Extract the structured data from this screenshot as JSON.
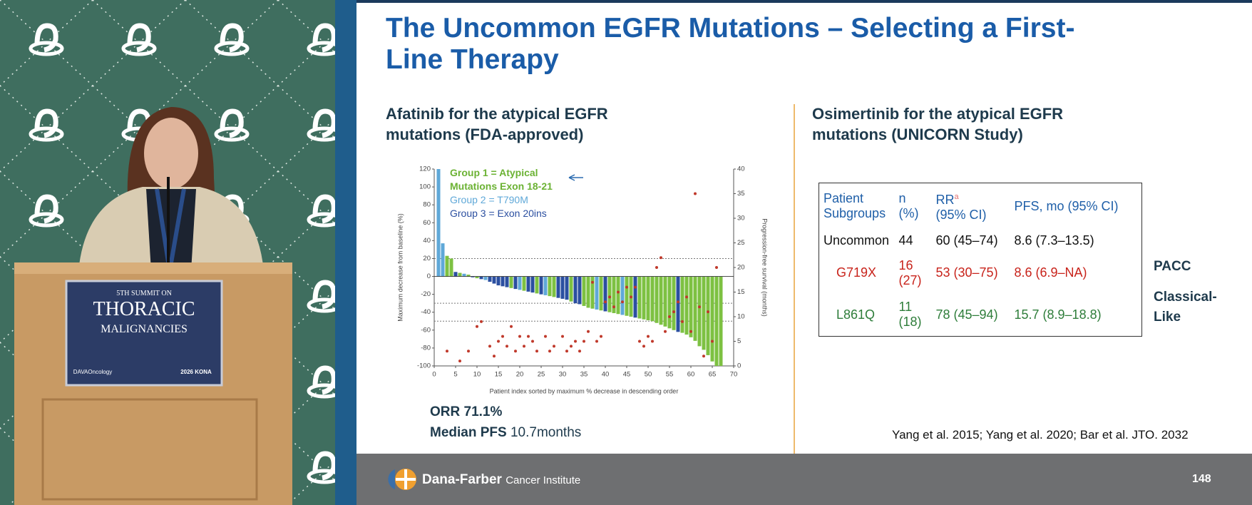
{
  "video": {
    "sign_lines": [
      "5TH SUMMIT ON",
      "THORACIC",
      "MALIGNANCIES"
    ],
    "sign_logo": "DAVAOncology",
    "sign_event": "2026 KONA"
  },
  "slide": {
    "title": "The Uncommon EGFR Mutations – Selecting a First-Line Therapy",
    "left_heading": "Afatinib for the atypical EGFR mutations (FDA-approved)",
    "right_heading": "Osimertinib for the atypical EGFR mutations (UNICORN Study)",
    "orr": "ORR 71.1%",
    "pfs_label": "Median PFS",
    "pfs_value": "10.7months",
    "table": {
      "header": [
        "Patient Subgroups",
        "n (%)",
        [
          "RR",
          "a",
          "(95% CI)"
        ],
        "PFS, mo (95% CI)"
      ],
      "rows": [
        [
          "Uncommon",
          "44",
          "60 (45–74)",
          "8.6 (7.3–13.5)"
        ],
        [
          "G719X",
          "16 (27)",
          "53 (30–75)",
          "8.6 (6.9–NA)"
        ],
        [
          "L861Q",
          "11 (18)",
          "78 (45–94)",
          "15.7 (8.9–18.8)"
        ]
      ]
    },
    "side_labels": [
      "PACC",
      "Classical-Like"
    ],
    "citation": "Yang et al. 2015; Yang et al. 2020; Bar et al. JTO. 2032",
    "footer": {
      "institution": "Dana-Farber",
      "subtitle": "Cancer Institute",
      "page": "148"
    }
  },
  "chart_data": {
    "type": "bar",
    "xlabel": "Patient index sorted by maximum % decrease in descending order",
    "ylabel": "Maximum decrease from baseline (%)",
    "y2label": "Progression-free survival (months)",
    "xlim": [
      0,
      70
    ],
    "xticks": [
      0,
      5,
      10,
      15,
      20,
      25,
      30,
      35,
      40,
      45,
      50,
      55,
      60,
      65,
      70
    ],
    "ylim": [
      -100,
      120
    ],
    "yticks": [
      -100,
      -80,
      -60,
      -40,
      -20,
      0,
      20,
      40,
      60,
      80,
      100,
      120
    ],
    "y2lim": [
      0,
      40
    ],
    "y2ticks": [
      0,
      5,
      10,
      15,
      20,
      25,
      30,
      35,
      40
    ],
    "reference_lines": [
      20,
      -30,
      -50
    ],
    "series": [
      {
        "name": "Group 1 = Atypical Mutations Exon 18-21",
        "color": "#7dc142",
        "x": [
          3,
          4,
          6,
          8,
          10,
          18,
          21,
          24,
          27,
          28,
          32,
          35,
          36,
          37,
          39,
          41,
          42,
          43,
          45,
          46,
          48,
          49,
          50,
          51,
          52,
          53,
          54,
          55,
          56,
          58,
          59,
          60,
          61,
          62,
          63,
          64,
          65,
          66,
          67
        ],
        "values": [
          23,
          20,
          4,
          2,
          -2,
          -13,
          -16,
          -19,
          -22,
          -23,
          -28,
          -33,
          -35,
          -36,
          -38,
          -40,
          -41,
          -42,
          -44,
          -45,
          -47,
          -48,
          -49,
          -50,
          -52,
          -54,
          -56,
          -58,
          -60,
          -63,
          -65,
          -68,
          -72,
          -78,
          -82,
          -88,
          -95,
          -100,
          -100
        ]
      },
      {
        "name": "Group 2 = T790M",
        "color": "#5fa8d8",
        "x": [
          1,
          2,
          7,
          12,
          20,
          26,
          38,
          44
        ],
        "values": [
          120,
          37,
          3,
          -4,
          -15,
          -21,
          -37,
          -43
        ]
      },
      {
        "name": "Group 3 = Exon 20ins",
        "color": "#2b4fa0",
        "x": [
          5,
          9,
          11,
          13,
          14,
          15,
          16,
          17,
          19,
          22,
          23,
          25,
          29,
          30,
          31,
          33,
          34,
          40,
          47,
          57
        ],
        "values": [
          5,
          -1,
          -3,
          -6,
          -8,
          -10,
          -11,
          -12,
          -14,
          -17,
          -18,
          -20,
          -24,
          -25,
          -26,
          -30,
          -31,
          -39,
          -46,
          -62
        ]
      },
      {
        "type": "scatter",
        "axis": "y2",
        "color": "#c0392b",
        "x": [
          3,
          6,
          8,
          10,
          11,
          13,
          14,
          15,
          16,
          17,
          18,
          19,
          20,
          21,
          22,
          23,
          24,
          26,
          27,
          28,
          30,
          31,
          32,
          33,
          34,
          35,
          36,
          37,
          38,
          39,
          40,
          41,
          42,
          43,
          44,
          45,
          46,
          47,
          48,
          49,
          50,
          51,
          52,
          53,
          54,
          55,
          56,
          57,
          58,
          59,
          60,
          61,
          62,
          63,
          64,
          65,
          66
        ],
        "values": [
          3,
          1,
          3,
          8,
          9,
          4,
          2,
          5,
          6,
          4,
          8,
          3,
          6,
          4,
          6,
          5,
          3,
          6,
          3,
          4,
          6,
          3,
          4,
          5,
          3,
          5,
          7,
          17,
          5,
          6,
          13,
          14,
          12,
          15,
          13,
          16,
          14,
          16,
          5,
          4,
          6,
          5,
          20,
          22,
          7,
          10,
          11,
          13,
          9,
          14,
          7,
          35,
          12,
          2,
          11,
          5,
          20
        ]
      }
    ]
  }
}
